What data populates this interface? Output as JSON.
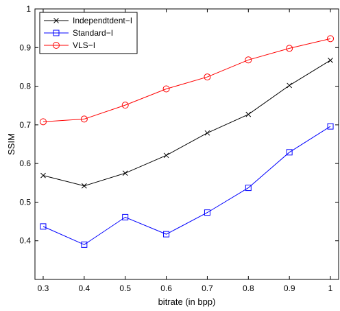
{
  "chart_data": {
    "type": "line",
    "title": "",
    "xlabel": "bitrate (in bpp)",
    "ylabel": "SSIM",
    "xlim": [
      0.28,
      1.02
    ],
    "ylim": [
      0.3,
      1.0
    ],
    "xticks": [
      0.3,
      0.4,
      0.5,
      0.6,
      0.7,
      0.8,
      0.9,
      1.0
    ],
    "xtick_labels": [
      "0.3",
      "0.4",
      "0.5",
      "0.6",
      "0.7",
      "0.8",
      "0.9",
      "1"
    ],
    "yticks": [
      0.4,
      0.5,
      0.6,
      0.7,
      0.8,
      0.9,
      1.0
    ],
    "ytick_labels": [
      "0.4",
      "0.5",
      "0.6",
      "0.7",
      "0.8",
      "0.9",
      "1"
    ],
    "grid": false,
    "legend_position": "top-left",
    "x": [
      0.3,
      0.4,
      0.5,
      0.6,
      0.7,
      0.8,
      0.9,
      1.0
    ],
    "series": [
      {
        "name": "Independtdent−I",
        "color": "#000000",
        "marker": "x",
        "values": [
          0.569,
          0.542,
          0.575,
          0.621,
          0.679,
          0.727,
          0.802,
          0.867
        ]
      },
      {
        "name": "Standard−I",
        "color": "#0000ff",
        "marker": "square",
        "values": [
          0.437,
          0.39,
          0.461,
          0.417,
          0.473,
          0.537,
          0.629,
          0.696
        ]
      },
      {
        "name": "VLS−I",
        "color": "#ff0000",
        "marker": "circle",
        "values": [
          0.708,
          0.715,
          0.751,
          0.793,
          0.824,
          0.868,
          0.898,
          0.923
        ]
      }
    ]
  }
}
